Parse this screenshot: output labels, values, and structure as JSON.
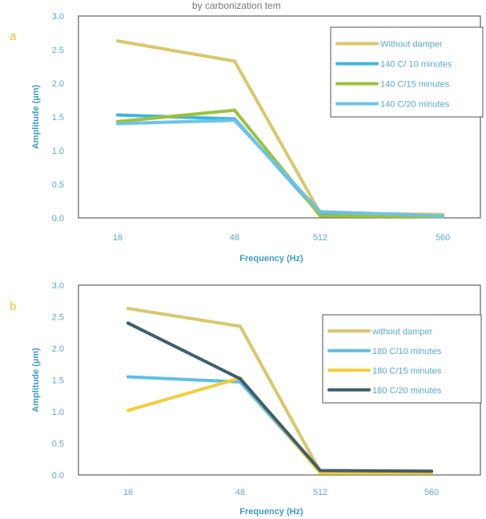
{
  "header_text": "by carbonization tem",
  "chart_data": [
    {
      "type": "line",
      "panel_label": "a",
      "title": "",
      "categories": [
        "16",
        "48",
        "512",
        "560"
      ],
      "xlabel": "Frequency (Hz)",
      "ylabel": "Amplitude (µm)",
      "ylim": [
        0,
        3.0
      ],
      "yticks": [
        "0.0",
        "0.5",
        "1.0",
        "1.5",
        "2.0",
        "2.5",
        "3.0"
      ],
      "grid": false,
      "legend_position": "top-right",
      "series": [
        {
          "name": "Without damper",
          "color": "#d9c76a",
          "values": [
            2.63,
            2.33,
            0.07,
            0.05
          ]
        },
        {
          "name": "140 C/ 10 minutes",
          "color": "#3fb6de",
          "values": [
            1.53,
            1.47,
            0.05,
            0.02
          ]
        },
        {
          "name": "140 C/15 minutes",
          "color": "#9cc23a",
          "values": [
            1.43,
            1.6,
            0.03,
            0.02
          ]
        },
        {
          "name": "140 C/20 minutes",
          "color": "#6cc3e8",
          "values": [
            1.4,
            1.45,
            0.09,
            0.03
          ]
        }
      ]
    },
    {
      "type": "line",
      "panel_label": "b",
      "title": "",
      "categories": [
        "16",
        "48",
        "512",
        "560"
      ],
      "xlabel": "Frequency (Hz)",
      "ylabel": "Amplitude (µm)",
      "ylim": [
        0,
        3.0
      ],
      "yticks": [
        "0.0",
        "0.5",
        "1.0",
        "1.5",
        "2.0",
        "2.5",
        "3.0"
      ],
      "grid": false,
      "legend_position": "top-right",
      "series": [
        {
          "name": "without damper",
          "color": "#d9c76a",
          "values": [
            2.63,
            2.35,
            0.05,
            0.04
          ]
        },
        {
          "name": "180 C/10 minutes",
          "color": "#5cc0e3",
          "values": [
            1.55,
            1.47,
            0.05,
            0.04
          ]
        },
        {
          "name": "180 C/15 minutes",
          "color": "#f3cd3a",
          "values": [
            1.02,
            1.53,
            0.03,
            0.03
          ]
        },
        {
          "name": "180 C/20 minutes",
          "color": "#3f5d6e",
          "values": [
            2.4,
            1.52,
            0.07,
            0.06
          ]
        }
      ]
    }
  ]
}
